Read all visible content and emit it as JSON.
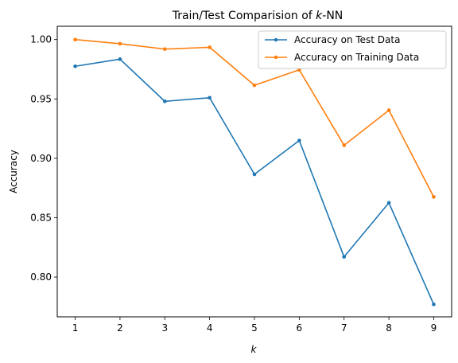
{
  "chart_data": {
    "type": "line",
    "title": "Train/Test Comparision of ",
    "title_k": "k",
    "title_suffix": "-NN",
    "xlabel": "k",
    "ylabel": "Accuracy",
    "x": [
      1,
      2,
      3,
      4,
      5,
      6,
      7,
      8,
      9
    ],
    "xlim": [
      0.6,
      9.4
    ],
    "ylim": [
      0.7665,
      1.0112
    ],
    "yticks": [
      0.8,
      0.85,
      0.9,
      0.95,
      1.0
    ],
    "ytick_labels": [
      "0.80",
      "0.85",
      "0.90",
      "0.95",
      "1.00"
    ],
    "xtick_labels": [
      "1",
      "2",
      "3",
      "4",
      "5",
      "6",
      "7",
      "8",
      "9"
    ],
    "grid": false,
    "legend_position": "top-right",
    "series": [
      {
        "name": "Accuracy on Test Data",
        "color": "#1f77b4",
        "values": [
          0.9775,
          0.9835,
          0.948,
          0.951,
          0.8865,
          0.915,
          0.817,
          0.8625,
          0.777
        ]
      },
      {
        "name": "Accuracy on Training Data",
        "color": "#ff7f0e",
        "values": [
          1.0,
          0.9965,
          0.992,
          0.9935,
          0.9615,
          0.9745,
          0.911,
          0.9405,
          0.8675
        ]
      }
    ]
  }
}
